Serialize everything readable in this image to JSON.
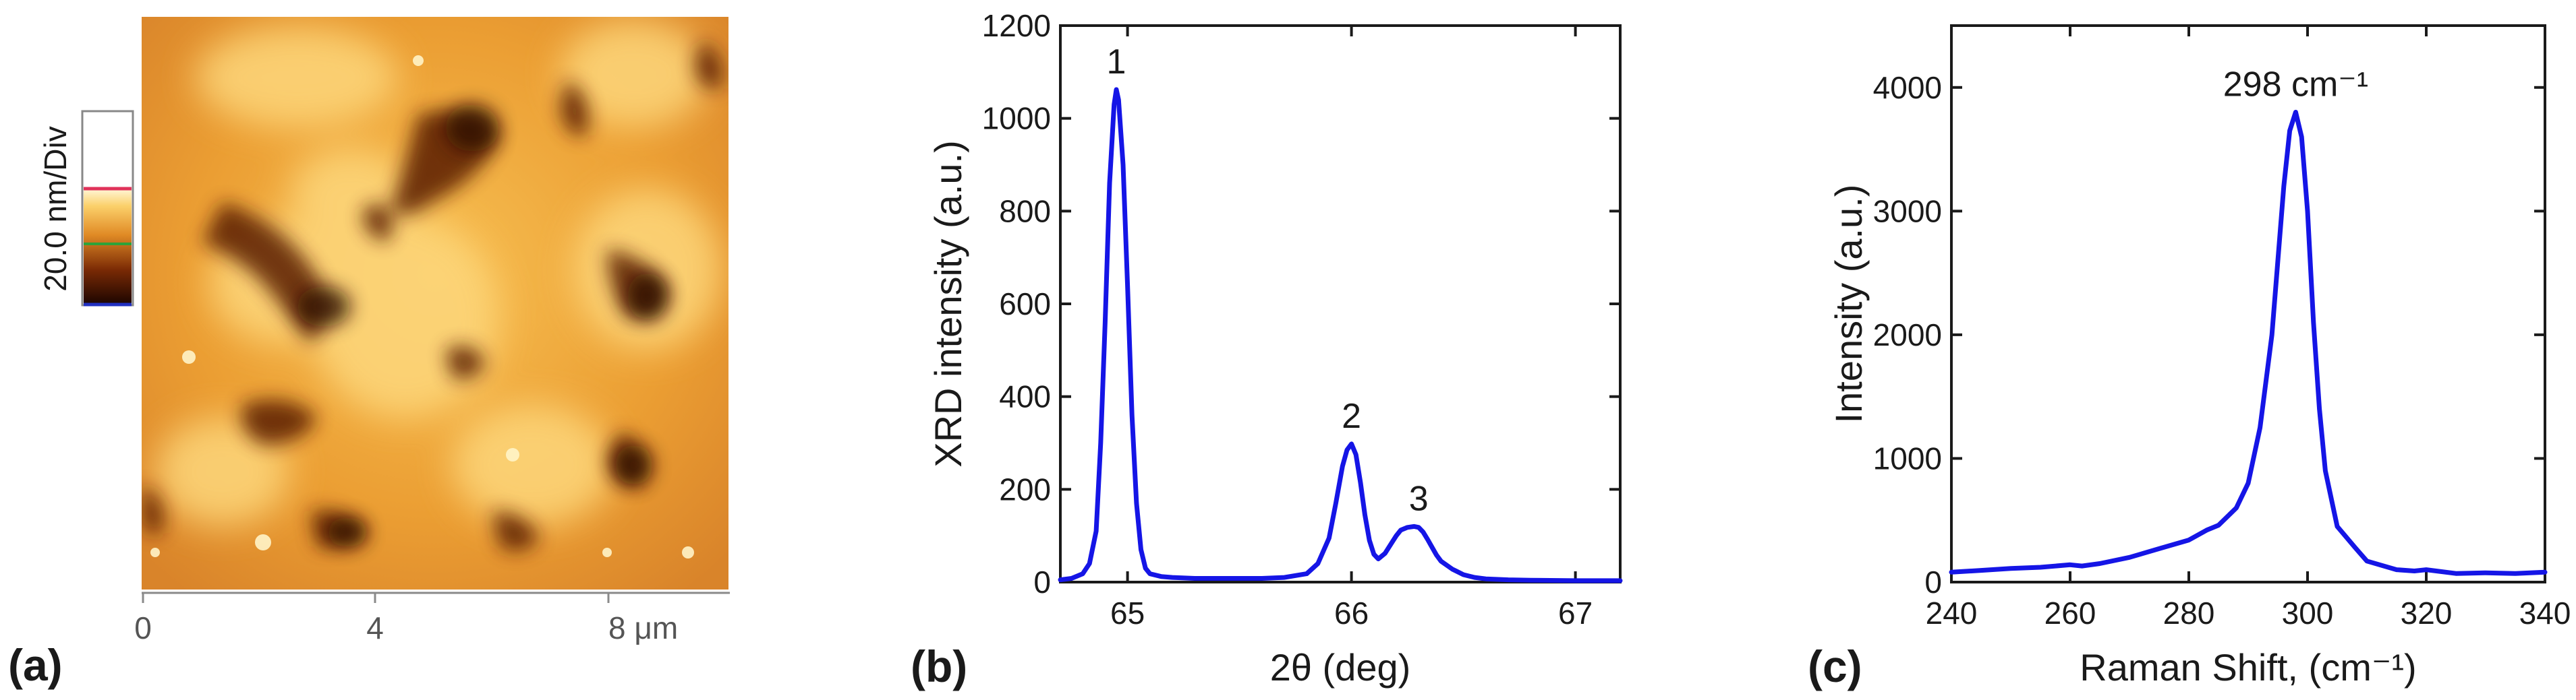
{
  "panels": {
    "a": {
      "panel_label": "(a)",
      "colorbar_label": "20.0 nm/Div",
      "x_ticks": [
        "0",
        "4",
        "8 μm"
      ]
    },
    "b": {
      "panel_label": "(b)",
      "peak_labels": [
        "1",
        "2",
        "3"
      ]
    },
    "c": {
      "panel_label": "(c)",
      "peak_label": "298 cm⁻¹"
    }
  },
  "colors": {
    "line": "#1515e6",
    "axis": "#1a1a1a"
  },
  "chart_data": [
    {
      "type": "image",
      "title": "",
      "xlabel": "",
      "x_ticks": [
        "0",
        "4",
        "8 μm"
      ],
      "colorbar": "20.0 nm/Div"
    },
    {
      "type": "line",
      "xlabel": "2θ (deg)",
      "ylabel": "XRD intensity (a.u.)",
      "xlim": [
        64.7,
        67.2
      ],
      "ylim": [
        0,
        1200
      ],
      "xticks": [
        65,
        66,
        67
      ],
      "yticks": [
        0,
        200,
        400,
        600,
        800,
        1000,
        1200
      ],
      "series": [
        {
          "x": [
            64.7,
            64.75,
            64.8,
            64.83,
            64.86,
            64.88,
            64.9,
            64.92,
            64.94,
            64.95,
            64.96,
            64.98,
            65.0,
            65.02,
            65.04,
            65.06,
            65.08,
            65.1,
            65.15,
            65.2,
            65.3,
            65.4,
            65.5,
            65.6,
            65.7,
            65.8,
            65.85,
            65.9,
            65.93,
            65.96,
            65.98,
            66.0,
            66.02,
            66.04,
            66.06,
            66.08,
            66.1,
            66.12,
            66.15,
            66.18,
            66.2,
            66.22,
            66.25,
            66.28,
            66.3,
            66.32,
            66.34,
            66.36,
            66.38,
            66.4,
            66.45,
            66.5,
            66.55,
            66.6,
            66.7,
            66.8,
            67.0,
            67.2
          ],
          "y": [
            5,
            8,
            18,
            40,
            110,
            300,
            560,
            860,
            1030,
            1062,
            1040,
            900,
            640,
            360,
            170,
            70,
            30,
            18,
            12,
            10,
            8,
            8,
            8,
            8,
            10,
            18,
            40,
            95,
            170,
            250,
            285,
            298,
            275,
            215,
            145,
            90,
            60,
            50,
            62,
            85,
            100,
            112,
            118,
            120,
            118,
            108,
            92,
            75,
            58,
            45,
            28,
            16,
            10,
            7,
            5,
            4,
            3,
            3
          ]
        }
      ],
      "annotations": [
        {
          "text": "1",
          "x": 64.95,
          "y": 1062
        },
        {
          "text": "2",
          "x": 66.0,
          "y": 298
        },
        {
          "text": "3",
          "x": 66.3,
          "y": 120
        }
      ]
    },
    {
      "type": "line",
      "xlabel": "Raman Shift, (cm⁻¹)",
      "ylabel": "Intensity (a.u.)",
      "xlim": [
        240,
        340
      ],
      "ylim": [
        0,
        4500
      ],
      "xticks": [
        240,
        260,
        280,
        300,
        320,
        340
      ],
      "yticks": [
        0,
        1000,
        2000,
        3000,
        4000
      ],
      "series": [
        {
          "x": [
            240,
            245,
            250,
            255,
            260,
            262,
            265,
            270,
            275,
            280,
            283,
            285,
            288,
            290,
            292,
            294,
            295,
            296,
            297,
            298,
            299,
            300,
            301,
            302,
            303,
            305,
            308,
            310,
            315,
            318,
            320,
            325,
            330,
            335,
            340
          ],
          "y": [
            80,
            95,
            110,
            120,
            140,
            130,
            150,
            200,
            270,
            340,
            420,
            460,
            600,
            800,
            1250,
            2000,
            2600,
            3200,
            3650,
            3800,
            3600,
            3000,
            2100,
            1400,
            900,
            450,
            280,
            170,
            100,
            90,
            100,
            70,
            75,
            70,
            80
          ]
        }
      ],
      "annotations": [
        {
          "text": "298 cm⁻¹",
          "x": 298,
          "y": 3800
        }
      ]
    }
  ]
}
